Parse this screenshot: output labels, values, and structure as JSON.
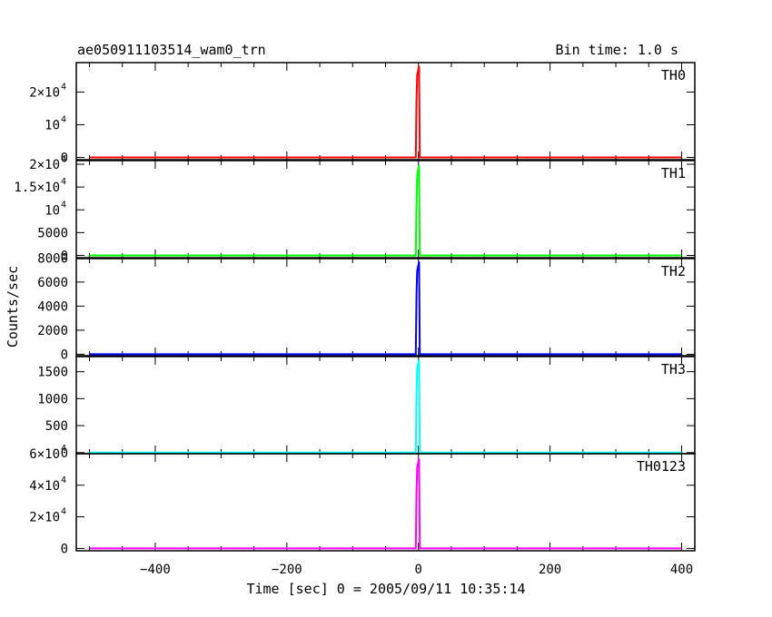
{
  "header": {
    "title": "ae050911103514_wam0_trn",
    "bin_time": "Bin time: 1.0 s"
  },
  "chart_data": {
    "type": "line",
    "xlabel": "Time [sec] 0 = 2005/09/11 10:35:14",
    "ylabel": "Counts/sec",
    "xlim": [
      -520,
      420
    ],
    "x_ticks": [
      -400,
      -200,
      0,
      200,
      400
    ],
    "panels": [
      {
        "name": "TH0",
        "color": "#ff0000",
        "ylim": [
          -700,
          29000
        ],
        "y_ticks": [
          {
            "v": 0,
            "m": "0",
            "e": ""
          },
          {
            "v": 10000,
            "m": "10",
            "e": "4"
          },
          {
            "v": 20000,
            "m": "2×10",
            "e": "4"
          }
        ],
        "x": [
          -500,
          -5,
          -4,
          -3,
          -2,
          -1,
          0,
          1,
          2,
          3,
          400
        ],
        "y": [
          0,
          0,
          0,
          18000,
          25000,
          26000,
          27000,
          28000,
          0,
          0,
          0
        ]
      },
      {
        "name": "TH1",
        "color": "#00ff00",
        "ylim": [
          -500,
          20800
        ],
        "y_ticks": [
          {
            "v": 0,
            "m": "0",
            "e": ""
          },
          {
            "v": 5000,
            "m": "5000",
            "e": ""
          },
          {
            "v": 10000,
            "m": "10",
            "e": "4"
          },
          {
            "v": 15000,
            "m": "1.5×10",
            "e": "4"
          },
          {
            "v": 20000,
            "m": "2×10",
            "e": "4"
          }
        ],
        "x": [
          -500,
          -5,
          -4,
          -3,
          -2,
          -1,
          0,
          1,
          2,
          3,
          400
        ],
        "y": [
          0,
          0,
          0,
          12000,
          17000,
          18500,
          19000,
          19800,
          0,
          0,
          0
        ]
      },
      {
        "name": "TH2",
        "color": "#0000ff",
        "ylim": [
          -120,
          7950
        ],
        "y_ticks": [
          {
            "v": 0,
            "m": "0",
            "e": ""
          },
          {
            "v": 2000,
            "m": "2000",
            "e": ""
          },
          {
            "v": 4000,
            "m": "4000",
            "e": ""
          },
          {
            "v": 6000,
            "m": "6000",
            "e": ""
          },
          {
            "v": 8000,
            "m": "8000",
            "e": ""
          }
        ],
        "x": [
          -500,
          -5,
          -4,
          -3,
          -2,
          -1,
          0,
          1,
          2,
          3,
          400
        ],
        "y": [
          0,
          0,
          0,
          5000,
          6900,
          7200,
          7400,
          7700,
          0,
          0,
          0
        ]
      },
      {
        "name": "TH3",
        "color": "#00ffff",
        "ylim": [
          -20,
          1780
        ],
        "y_ticks": [
          {
            "v": 0,
            "m": "0",
            "e": ""
          },
          {
            "v": 500,
            "m": "500",
            "e": ""
          },
          {
            "v": 1000,
            "m": "1000",
            "e": ""
          },
          {
            "v": 1500,
            "m": "1500",
            "e": ""
          }
        ],
        "x": [
          -500,
          -5,
          -4,
          -3,
          -2,
          -1,
          0,
          1,
          2,
          3,
          400
        ],
        "y": [
          0,
          0,
          0,
          1100,
          1550,
          1620,
          1680,
          1720,
          0,
          0,
          0
        ]
      },
      {
        "name": "TH0123",
        "color": "#ff00ff",
        "ylim": [
          -1500,
          60000
        ],
        "y_ticks": [
          {
            "v": 0,
            "m": "0",
            "e": ""
          },
          {
            "v": 20000,
            "m": "2×10",
            "e": "4"
          },
          {
            "v": 40000,
            "m": "4×10",
            "e": "4"
          },
          {
            "v": 60000,
            "m": "6×10",
            "e": "4"
          }
        ],
        "x": [
          -500,
          -5,
          -4,
          -3,
          -2,
          -1,
          0,
          1,
          2,
          3,
          400
        ],
        "y": [
          0,
          0,
          0,
          37000,
          51000,
          53000,
          55000,
          57000,
          0,
          0,
          0
        ]
      }
    ]
  }
}
